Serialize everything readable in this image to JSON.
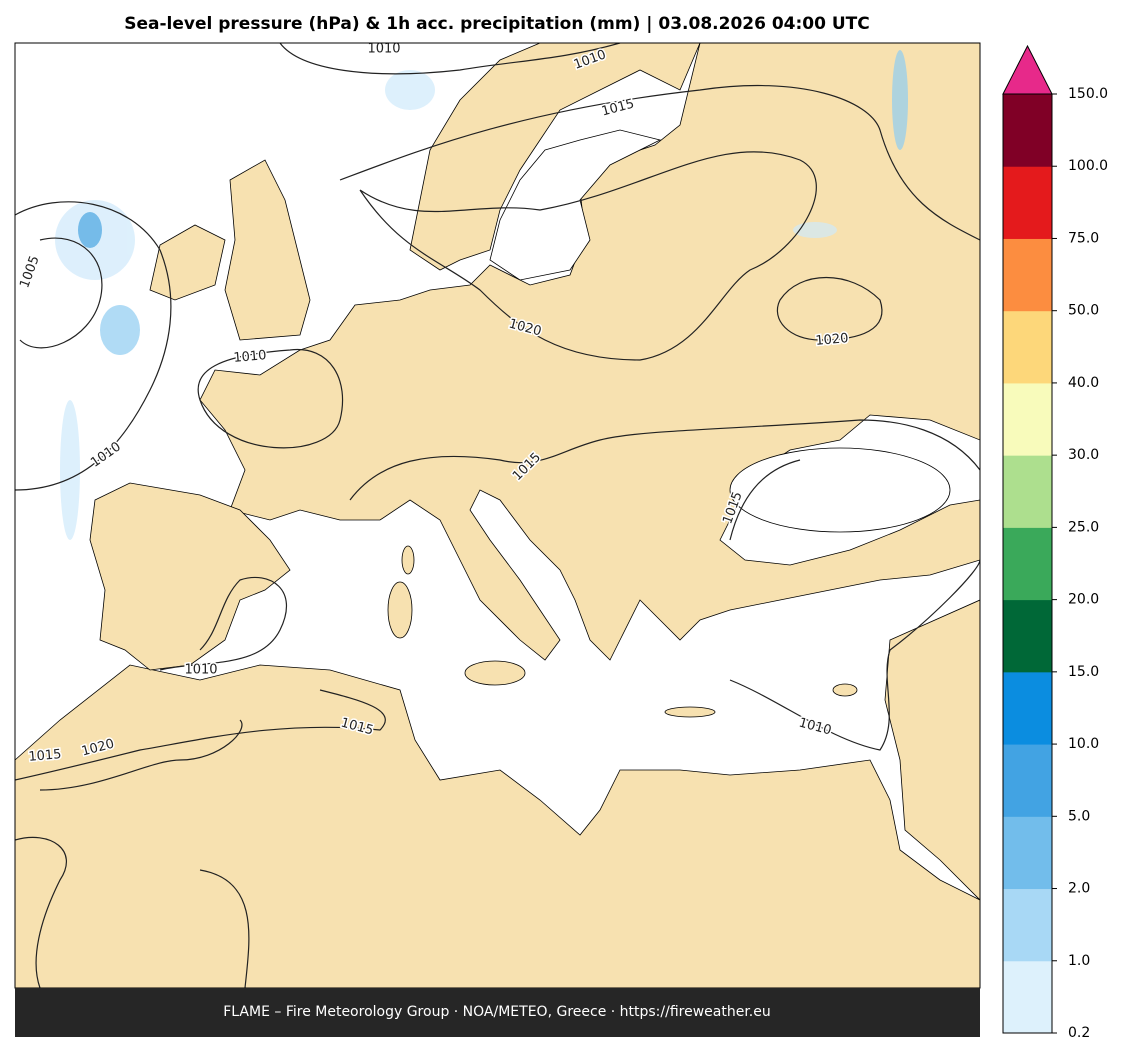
{
  "title": "Sea-level pressure (hPa) & 1h acc. precipitation (mm)  |  03.08.2026 04:00 UTC",
  "map": {
    "contour_labels": [
      "1010",
      "1010",
      "1015",
      "1005",
      "1010",
      "1010",
      "1020",
      "1020",
      "1015",
      "1015",
      "1010",
      "1015",
      "1015",
      "1020",
      "1010"
    ]
  },
  "colorbar": {
    "ticks": [
      0.2,
      {
        "value": 1,
        "label": "1.0"
      },
      {
        "value": 2,
        "label": "2.0"
      },
      {
        "value": 5,
        "label": "5.0"
      },
      {
        "value": 10,
        "label": "10.0"
      },
      {
        "value": 15,
        "label": "15.0"
      },
      {
        "value": 20,
        "label": "20.0"
      },
      {
        "value": 25,
        "label": "25.0"
      },
      {
        "value": 30,
        "label": "30.0"
      },
      {
        "value": 40,
        "label": "40.0"
      },
      {
        "value": 50,
        "label": "50.0"
      },
      {
        "value": 75,
        "label": "75.0"
      },
      {
        "value": 100,
        "label": "100.0"
      },
      {
        "value": 150,
        "label": "150.0"
      }
    ],
    "colors": [
      "#ddf1fc",
      "#a8d8f5",
      "#72bdeb",
      "#42a3e3",
      "#0b8de0",
      "#006837",
      "#3aa95a",
      "#addf8e",
      "#f8fbbb",
      "#fdd77a",
      "#fc8d40",
      "#e41a1c",
      "#800026"
    ],
    "extend_color": "#e7298a"
  },
  "footer": "FLAME – Fire Meteorology Group · NOA/METEO, Greece · https://fireweather.eu"
}
